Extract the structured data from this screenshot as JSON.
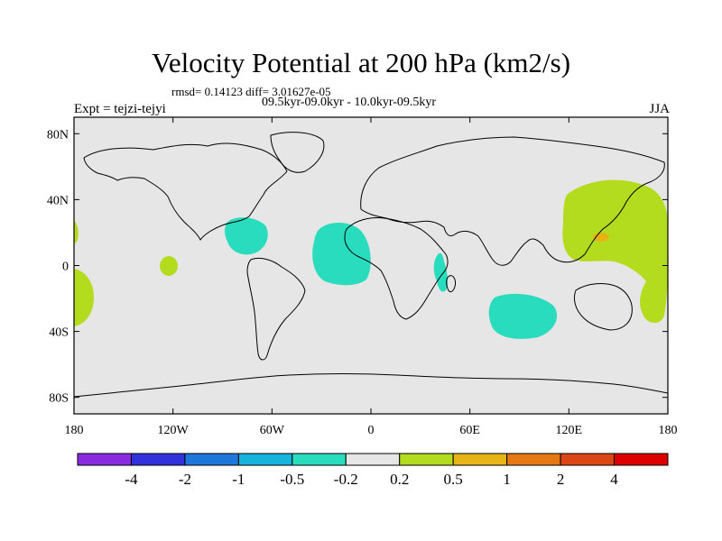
{
  "title": "Velocity Potential at 200 hPa (km2/s)",
  "stats": "rmsd= 0.14123 diff= 3.01627e-05",
  "periods": "09.5kyr-09.0kyr - 10.0kyr-09.5kyr",
  "experiment": "Expt = tejzi-tejyi",
  "season": "JJA",
  "colors": {
    "land_background": "#e6e6e6",
    "coastline": "#000000"
  },
  "axes": {
    "x_ticks": [
      {
        "label": "180",
        "lon": -180
      },
      {
        "label": "120W",
        "lon": -120
      },
      {
        "label": "60W",
        "lon": -60
      },
      {
        "label": "0",
        "lon": 0
      },
      {
        "label": "60E",
        "lon": 60
      },
      {
        "label": "120E",
        "lon": 120
      },
      {
        "label": "180",
        "lon": 180
      }
    ],
    "y_ticks": [
      {
        "label": "80N",
        "lat": 80
      },
      {
        "label": "40N",
        "lat": 40
      },
      {
        "label": "0",
        "lat": 0
      },
      {
        "label": "40S",
        "lat": -40
      },
      {
        "label": "80S",
        "lat": -80
      }
    ]
  },
  "colorbar": {
    "colors": [
      "#8a2be2",
      "#3232dc",
      "#1e78dc",
      "#16b4dc",
      "#2adcbe",
      "#e6e6e6",
      "#b4dc1e",
      "#e6b414",
      "#e67814",
      "#dc4614",
      "#dc0000"
    ],
    "labels": [
      "-4",
      "-2",
      "-1",
      "-0.5",
      "-0.2",
      "0.2",
      "0.5",
      "1",
      "2",
      "4"
    ]
  },
  "anomalies": [
    {
      "name": "caribbean-negative",
      "color": "#2adcbe",
      "lon": -70,
      "lat": 20
    },
    {
      "name": "equatorial-atlantic-negative",
      "color": "#2adcbe",
      "lon": -20,
      "lat": 5
    },
    {
      "name": "east-africa-negative",
      "color": "#2adcbe",
      "lon": 43,
      "lat": -5
    },
    {
      "name": "south-indian-ocean-negative",
      "color": "#2adcbe",
      "lon": 82,
      "lat": -32
    },
    {
      "name": "west-pacific-positive",
      "color": "#b4dc1e",
      "lon": 140,
      "lat": 30
    },
    {
      "name": "west-pacific-core-positive",
      "color": "#e6b414",
      "lon": 142,
      "lat": 18
    },
    {
      "name": "central-pacific-positive",
      "color": "#b4dc1e",
      "lon": -130,
      "lat": 0
    },
    {
      "name": "eastern-pacific-edge-positive",
      "color": "#b4dc1e",
      "lon": -178,
      "lat": -20
    }
  ]
}
